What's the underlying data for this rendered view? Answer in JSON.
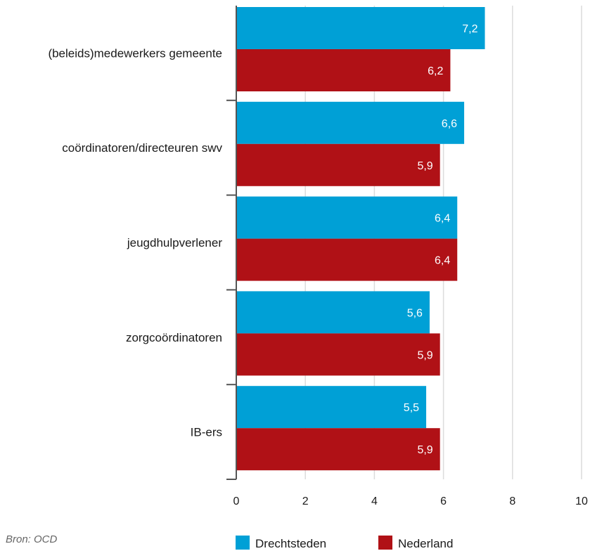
{
  "chart_data": {
    "type": "bar",
    "orientation": "horizontal",
    "title": "",
    "categories": [
      "(beleids)medewerkers gemeente",
      "coördinatoren/directeuren swv",
      "jeugdhulpverlener",
      "zorgcoördinatoren",
      "IB-ers"
    ],
    "series": [
      {
        "name": "Drechtsteden",
        "color": "#00a0d6",
        "values": [
          7.2,
          6.6,
          6.4,
          5.6,
          5.5
        ],
        "labels": [
          "7,2",
          "6,6",
          "6,4",
          "5,6",
          "5,5"
        ]
      },
      {
        "name": "Nederland",
        "color": "#b01116",
        "values": [
          6.2,
          5.9,
          6.4,
          5.9,
          5.9
        ],
        "labels": [
          "6,2",
          "5,9",
          "6,4",
          "5,9",
          "5,9"
        ]
      }
    ],
    "xlim": [
      0,
      10
    ],
    "xticks": [
      0,
      2,
      4,
      6,
      8,
      10
    ],
    "xtick_labels": [
      "0",
      "2",
      "4",
      "6",
      "8",
      "10"
    ],
    "grid": true,
    "legend_position": "bottom"
  },
  "source": "Bron: OCD"
}
